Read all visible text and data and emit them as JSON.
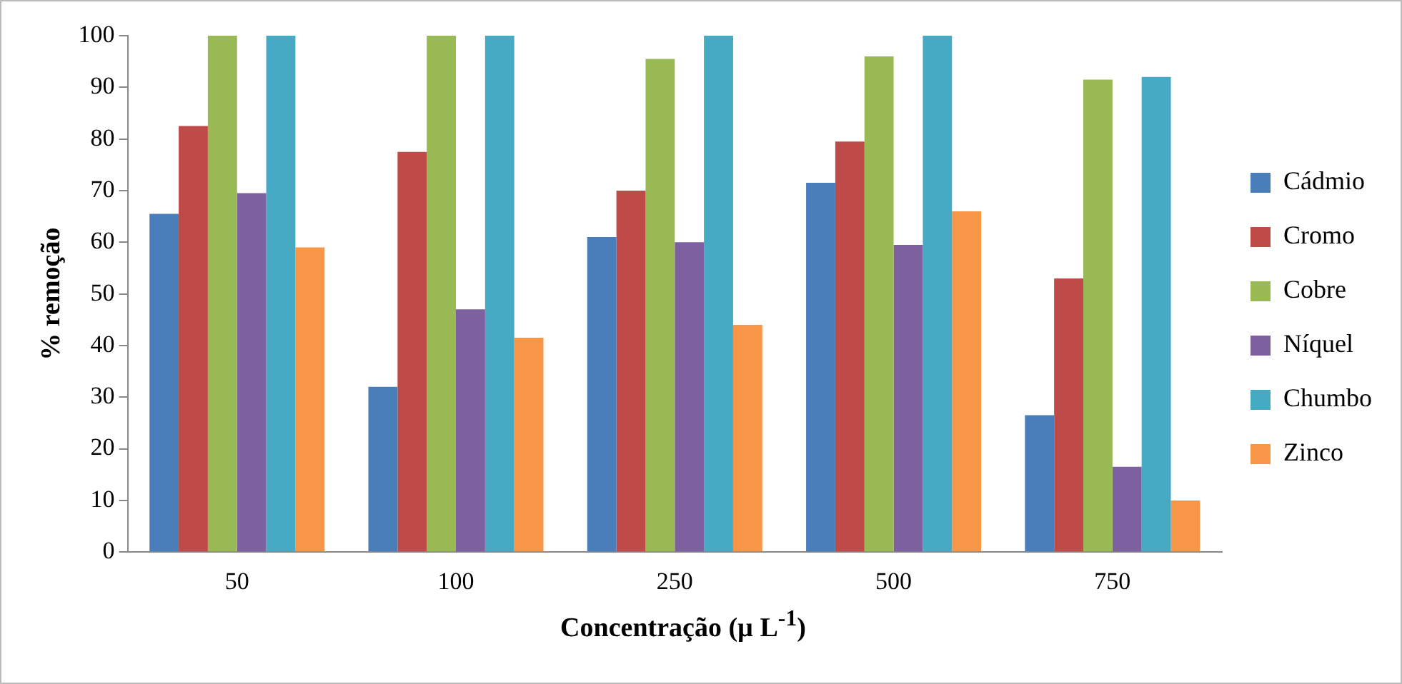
{
  "chart_data": {
    "type": "bar",
    "xlabel": "Concentração (µ L$^{-1}$)",
    "ylabel": "% remoção",
    "categories": [
      "50",
      "100",
      "250",
      "500",
      "750"
    ],
    "series": [
      {
        "name": "Cádmio",
        "color": "#4a7ebb",
        "values": [
          65.5,
          32,
          61,
          71.5,
          26.5
        ]
      },
      {
        "name": "Cromo",
        "color": "#be4b48",
        "values": [
          82.5,
          77.5,
          70,
          79.5,
          53
        ]
      },
      {
        "name": "Cobre",
        "color": "#98b954",
        "values": [
          100,
          100,
          95.5,
          96,
          91.5
        ]
      },
      {
        "name": "Níquel",
        "color": "#7d60a0",
        "values": [
          69.5,
          47,
          60,
          59.5,
          16.5
        ]
      },
      {
        "name": "Chumbo",
        "color": "#46aac5",
        "values": [
          100,
          100,
          100,
          100,
          92
        ]
      },
      {
        "name": "Zinco",
        "color": "#f79646",
        "values": [
          59,
          41.5,
          44,
          66,
          10
        ]
      }
    ],
    "ylim": [
      0,
      100
    ],
    "yticks": [
      0,
      10,
      20,
      30,
      40,
      50,
      60,
      70,
      80,
      90,
      100
    ],
    "grid": false,
    "legend": "right"
  }
}
